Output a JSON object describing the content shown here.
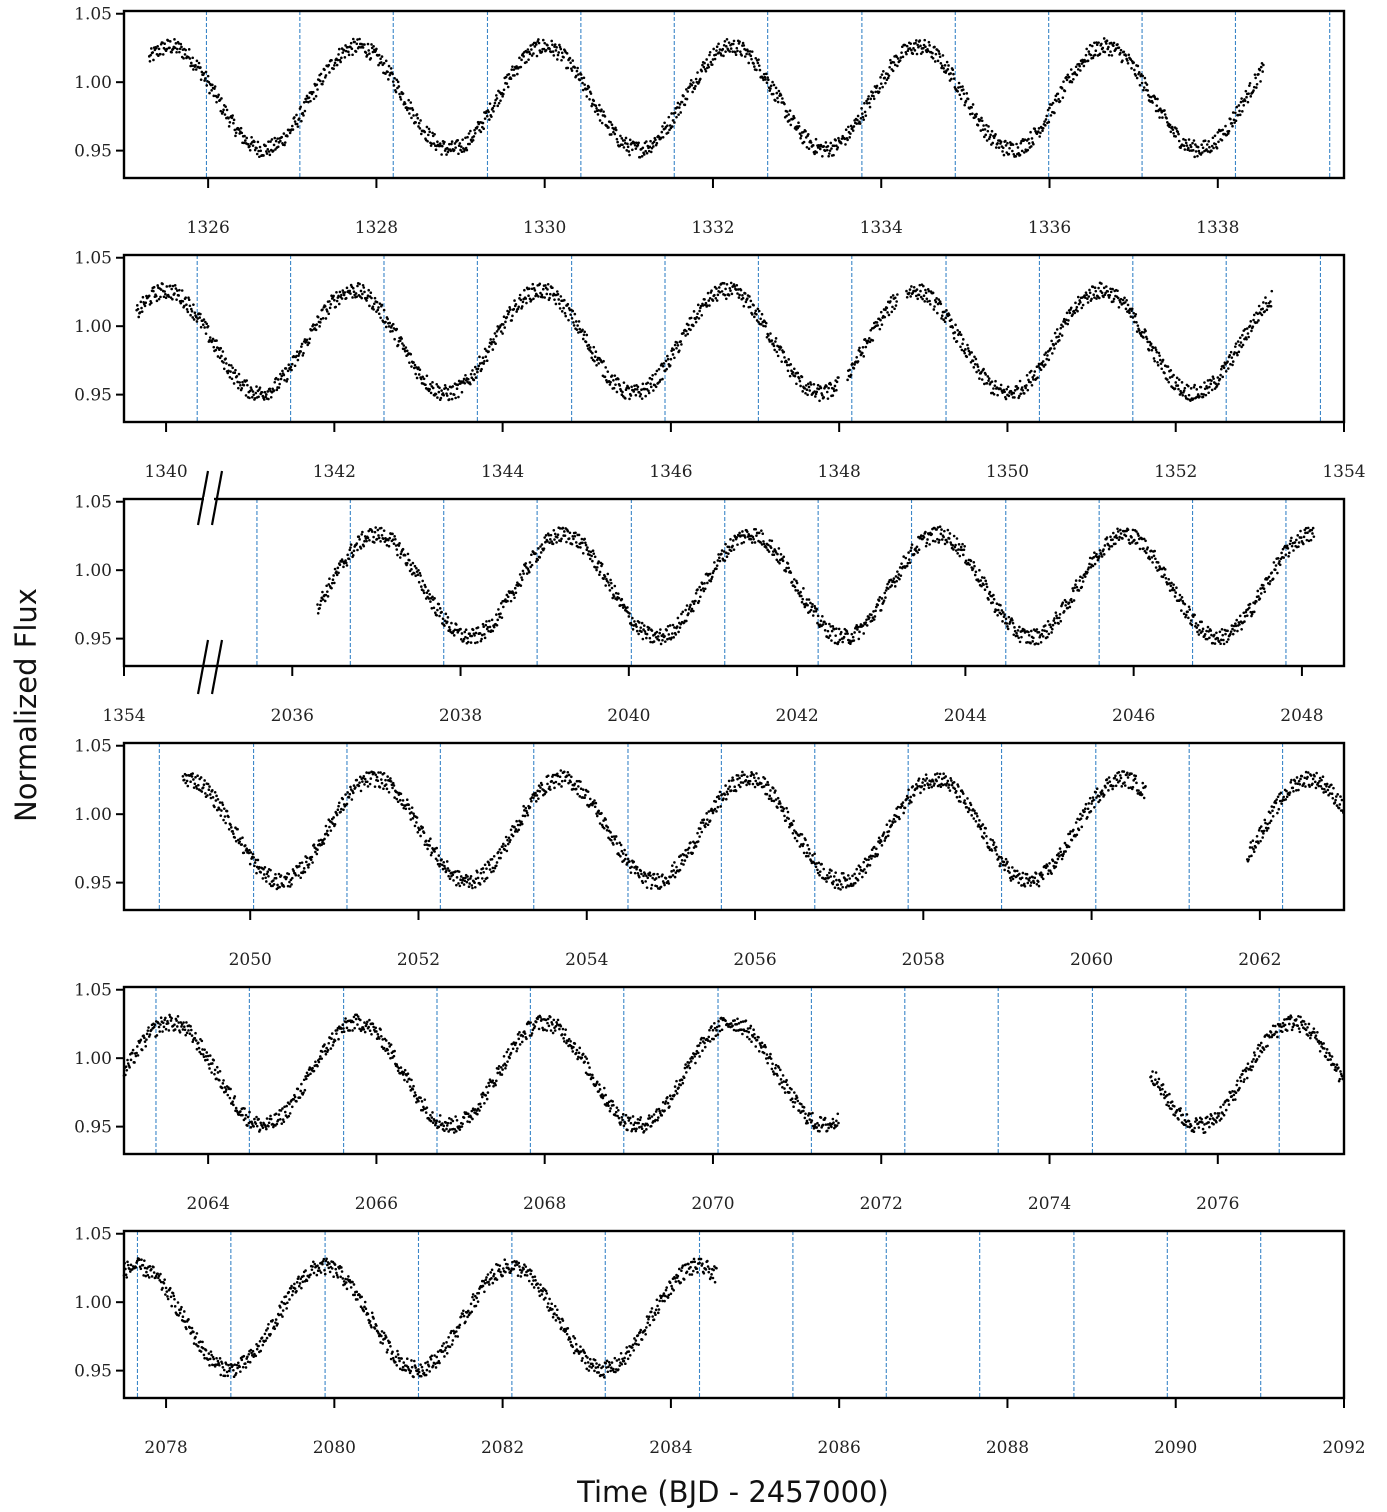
{
  "chart_data": {
    "type": "scatter",
    "ylabel": "Normalized Flux",
    "xlabel": "Time (BJD - 2457000)",
    "y_ticks": [
      "0.95",
      "1.00",
      "1.05"
    ],
    "ylim": [
      0.93,
      1.052
    ],
    "colors": {
      "points": "#000000",
      "transit_markers": "#3a86c8",
      "frame": "#000000"
    },
    "transit_period_days": 1.1115,
    "panels": [
      {
        "xlim": [
          1325.0,
          1339.5
        ],
        "x_ticks": [
          "1326",
          "1328",
          "1330",
          "1332",
          "1334",
          "1336",
          "1338"
        ],
        "x_tick_values": [
          1326,
          1328,
          1330,
          1332,
          1334,
          1336,
          1338
        ],
        "segments": [
          [
            1325.3,
            1338.55
          ]
        ],
        "transit_markers": [
          1325.98,
          1327.09,
          1328.2,
          1329.32,
          1330.43,
          1331.54,
          1332.65,
          1333.77,
          1334.88,
          1335.99,
          1337.1,
          1338.21,
          1339.33
        ],
        "sine_phase_ref": 1325.55
      },
      {
        "xlim": [
          1339.5,
          1354.0
        ],
        "x_ticks": [
          "1340",
          "1342",
          "1344",
          "1346",
          "1348",
          "1350",
          "1352",
          "1354"
        ],
        "x_tick_values": [
          1340,
          1342,
          1344,
          1346,
          1348,
          1350,
          1352,
          1354
        ],
        "segments": [
          [
            1339.65,
            1348.0
          ],
          [
            1348.1,
            1348.7
          ],
          [
            1348.8,
            1353.15
          ]
        ],
        "transit_markers": [
          1340.37,
          1341.48,
          1342.59,
          1343.7,
          1344.82,
          1345.93,
          1347.04,
          1348.15,
          1349.27,
          1350.38,
          1351.49,
          1352.6,
          1353.72
        ],
        "sine_phase_ref": 1340.0
      },
      {
        "xlim": [
          2034.0,
          2048.5
        ],
        "x_tick_values": [
          2034.0,
          2036,
          2038,
          2040,
          2042,
          2044,
          2046,
          2048
        ],
        "x_ticks": [
          "1354",
          "2036",
          "2038",
          "2040",
          "2042",
          "2044",
          "2046",
          "2048"
        ],
        "segments": [
          [
            2036.3,
            2048.15
          ]
        ],
        "transit_markers": [
          2035.58,
          2036.69,
          2037.8,
          2038.91,
          2040.03,
          2041.14,
          2042.25,
          2043.36,
          2044.48,
          2045.59,
          2046.7,
          2047.81
        ],
        "sine_phase_ref": 2037.0,
        "axis_break": true
      },
      {
        "xlim": [
          2048.5,
          2063.0
        ],
        "x_ticks": [
          "2050",
          "2052",
          "2054",
          "2056",
          "2058",
          "2060",
          "2062"
        ],
        "x_tick_values": [
          2050,
          2052,
          2054,
          2056,
          2058,
          2060,
          2062
        ],
        "segments": [
          [
            2049.2,
            2060.65
          ],
          [
            2061.85,
            2063.0
          ]
        ],
        "transit_markers": [
          2048.92,
          2050.04,
          2051.15,
          2052.26,
          2053.37,
          2054.49,
          2055.6,
          2056.71,
          2057.82,
          2058.93,
          2060.05,
          2061.16,
          2062.27
        ],
        "sine_phase_ref": 2049.25
      },
      {
        "xlim": [
          2063.0,
          2077.5
        ],
        "x_ticks": [
          "2064",
          "2066",
          "2068",
          "2070",
          "2072",
          "2074",
          "2076"
        ],
        "x_tick_values": [
          2064,
          2066,
          2068,
          2070,
          2072,
          2074,
          2076
        ],
        "segments": [
          [
            2063.0,
            2071.5
          ],
          [
            2075.2,
            2077.5
          ]
        ],
        "transit_markers": [
          2063.38,
          2064.49,
          2065.61,
          2066.72,
          2067.83,
          2068.94,
          2070.06,
          2071.17,
          2072.28,
          2073.39,
          2074.51,
          2075.62,
          2076.73
        ],
        "sine_phase_ref": 2063.55
      },
      {
        "xlim": [
          2077.5,
          2092.0
        ],
        "x_ticks": [
          "2078",
          "2080",
          "2082",
          "2084",
          "2086",
          "2088",
          "2090",
          "2092"
        ],
        "x_tick_values": [
          2078,
          2080,
          2082,
          2084,
          2086,
          2088,
          2090,
          2092
        ],
        "segments": [
          [
            2077.5,
            2084.55
          ]
        ],
        "transit_markers": [
          2077.66,
          2078.77,
          2079.89,
          2081.0,
          2082.11,
          2083.22,
          2084.34,
          2085.45,
          2086.56,
          2087.67,
          2088.79,
          2089.9,
          2091.01
        ],
        "sine_phase_ref": 2077.65
      }
    ]
  }
}
